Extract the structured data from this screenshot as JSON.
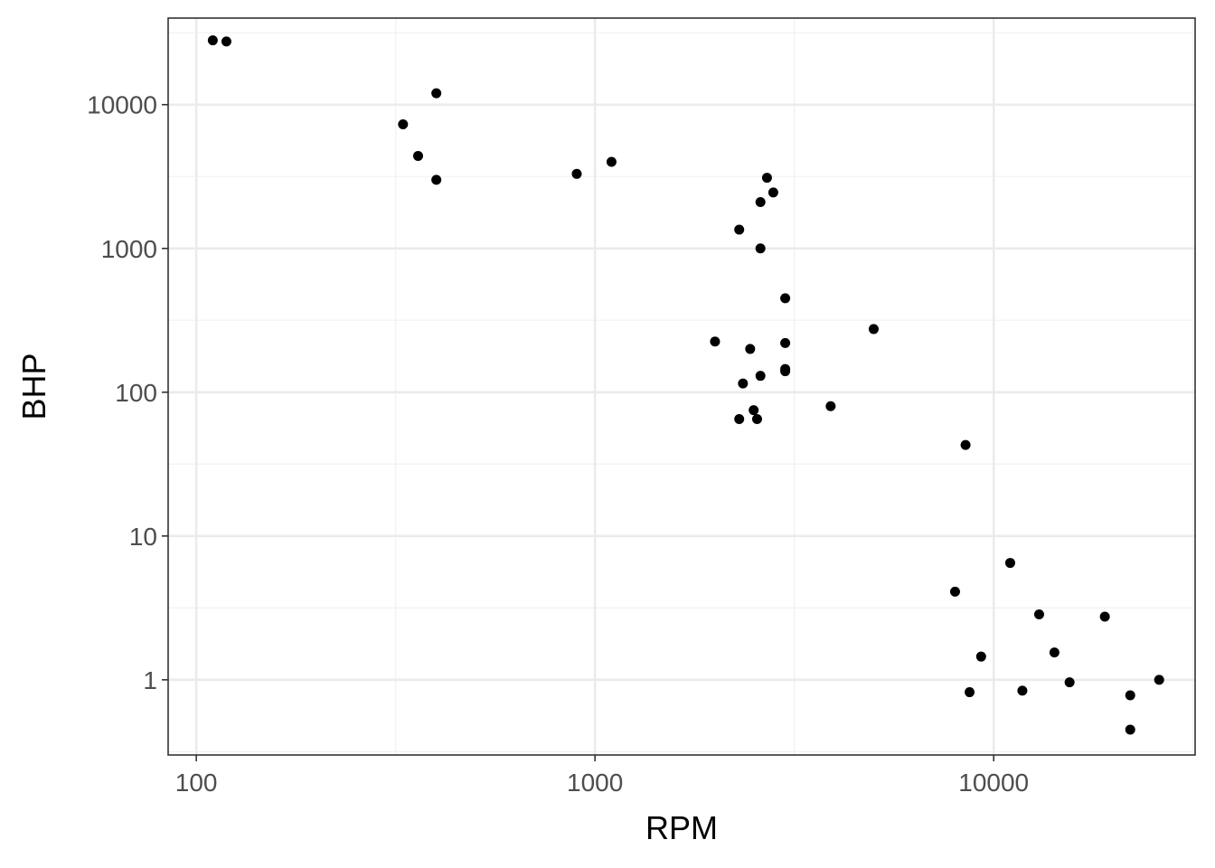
{
  "chart_data": {
    "type": "scatter",
    "xlabel": "RPM",
    "ylabel": "BHP",
    "xscale": "log10",
    "yscale": "log10",
    "xlim": [
      85,
      32000
    ],
    "ylim": [
      0.3,
      40000
    ],
    "xticks": [
      100,
      1000,
      10000
    ],
    "xtick_labels": [
      "100",
      "1000",
      "10000"
    ],
    "yticks": [
      1,
      10,
      100,
      1000,
      10000
    ],
    "ytick_labels": [
      "1",
      "10",
      "100",
      "1000",
      "10000"
    ],
    "grid": true,
    "theme": "bw",
    "point_color": "#000000",
    "grid_major_color": "#ebebeb",
    "grid_minor_color": "#f2f2f2",
    "panel_border_color": "#333333",
    "points": [
      {
        "x": 110,
        "y": 28000
      },
      {
        "x": 119,
        "y": 27500
      },
      {
        "x": 330,
        "y": 7300
      },
      {
        "x": 360,
        "y": 4400
      },
      {
        "x": 400,
        "y": 12000
      },
      {
        "x": 400,
        "y": 3000
      },
      {
        "x": 900,
        "y": 3300
      },
      {
        "x": 1100,
        "y": 4000
      },
      {
        "x": 2000,
        "y": 225
      },
      {
        "x": 2300,
        "y": 1350
      },
      {
        "x": 2300,
        "y": 65
      },
      {
        "x": 2350,
        "y": 115
      },
      {
        "x": 2450,
        "y": 200
      },
      {
        "x": 2500,
        "y": 75
      },
      {
        "x": 2550,
        "y": 65
      },
      {
        "x": 2600,
        "y": 2100
      },
      {
        "x": 2600,
        "y": 1000
      },
      {
        "x": 2600,
        "y": 130
      },
      {
        "x": 2700,
        "y": 3100
      },
      {
        "x": 2800,
        "y": 2450
      },
      {
        "x": 3000,
        "y": 450
      },
      {
        "x": 3000,
        "y": 220
      },
      {
        "x": 3000,
        "y": 145
      },
      {
        "x": 3000,
        "y": 140
      },
      {
        "x": 3900,
        "y": 80
      },
      {
        "x": 5000,
        "y": 275
      },
      {
        "x": 8000,
        "y": 4.1
      },
      {
        "x": 8500,
        "y": 43
      },
      {
        "x": 8700,
        "y": 0.82
      },
      {
        "x": 9300,
        "y": 1.45
      },
      {
        "x": 11000,
        "y": 6.5
      },
      {
        "x": 11800,
        "y": 0.84
      },
      {
        "x": 13000,
        "y": 2.85
      },
      {
        "x": 14200,
        "y": 1.55
      },
      {
        "x": 15500,
        "y": 0.96
      },
      {
        "x": 19000,
        "y": 2.75
      },
      {
        "x": 22000,
        "y": 0.78
      },
      {
        "x": 22000,
        "y": 0.45
      },
      {
        "x": 26000,
        "y": 1.0
      }
    ]
  }
}
